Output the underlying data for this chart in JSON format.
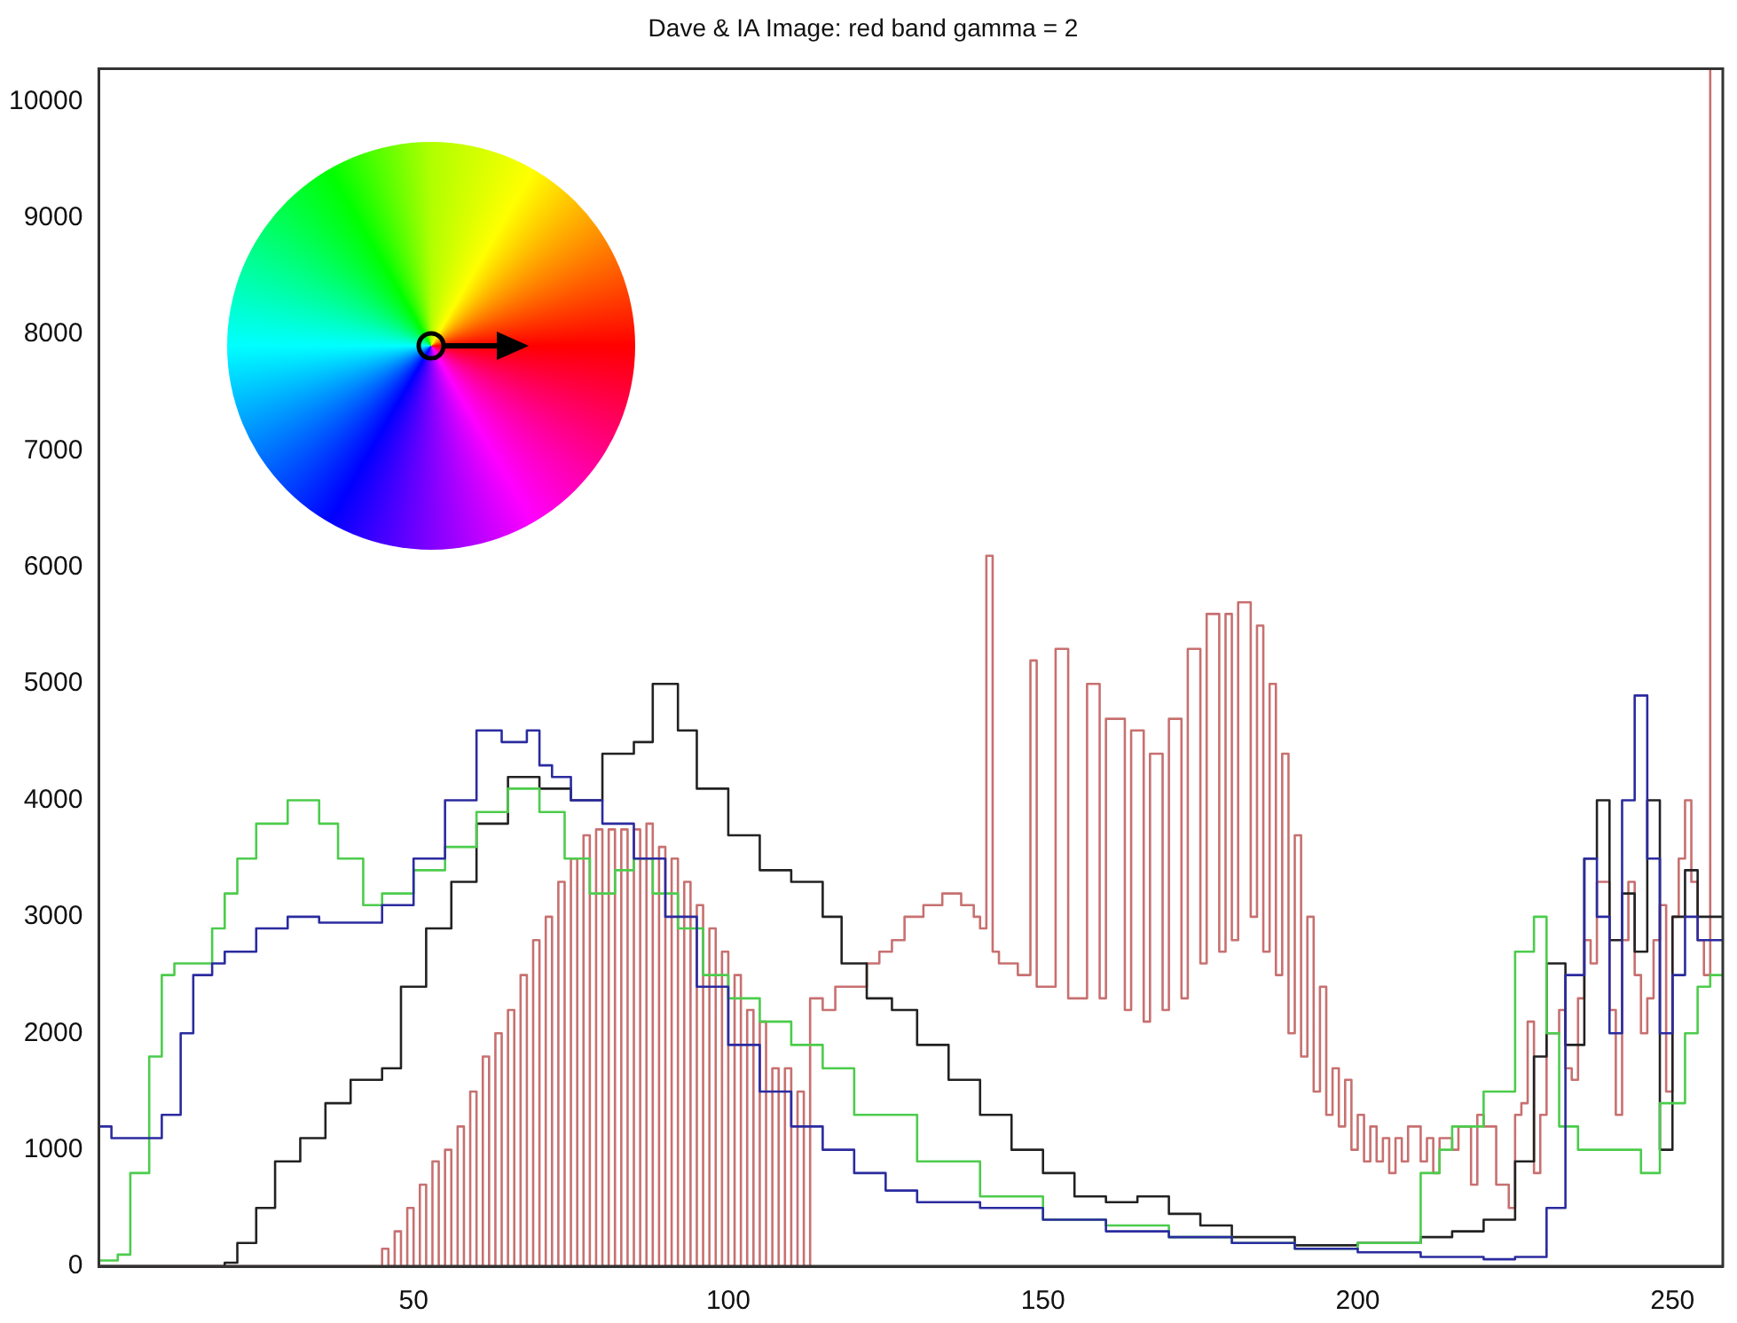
{
  "chart_data": {
    "type": "step",
    "title": "Dave & IA Image: red band gamma = 2",
    "xlim": [
      0,
      258
    ],
    "xticks": [
      50,
      100,
      150,
      200,
      250
    ],
    "ylim": [
      0,
      10280
    ],
    "yticks": [
      0,
      1000,
      2000,
      3000,
      4000,
      5000,
      6000,
      7000,
      8000,
      9000,
      10000
    ],
    "grid": false,
    "legend": false,
    "marker": "none",
    "line_style": "solid",
    "series": [
      {
        "color": "#2b2ba0",
        "x": [
          0,
          2,
          5,
          10,
          13,
          15,
          18,
          20,
          25,
          30,
          35,
          40,
          45,
          50,
          55,
          60,
          64,
          68,
          70,
          72,
          75,
          80,
          85,
          90,
          95,
          100,
          105,
          110,
          115,
          120,
          125,
          130,
          140,
          150,
          160,
          170,
          180,
          190,
          200,
          210,
          220,
          225,
          230,
          233,
          236,
          238,
          240,
          242,
          244,
          246,
          248,
          250,
          252,
          254,
          256,
          258
        ],
        "values": [
          2700,
          1200,
          1100,
          1100,
          1300,
          2000,
          2500,
          2600,
          2700,
          2900,
          3000,
          2950,
          2950,
          3100,
          3500,
          4000,
          4600,
          4500,
          4600,
          4300,
          4200,
          4000,
          3800,
          3500,
          3000,
          2400,
          1900,
          1500,
          1200,
          1000,
          800,
          650,
          550,
          500,
          400,
          300,
          250,
          200,
          150,
          120,
          80,
          60,
          80,
          500,
          2500,
          3500,
          3000,
          2000,
          4000,
          4900,
          3500,
          2000,
          2500,
          3000,
          2800,
          2800
        ]
      },
      {
        "color": "#4ccc4c",
        "x": [
          0,
          3,
          5,
          8,
          10,
          12,
          15,
          18,
          20,
          22,
          25,
          30,
          35,
          38,
          42,
          45,
          50,
          55,
          60,
          65,
          70,
          74,
          78,
          82,
          85,
          88,
          92,
          96,
          100,
          105,
          110,
          115,
          120,
          130,
          140,
          150,
          160,
          170,
          180,
          190,
          200,
          210,
          213,
          215,
          220,
          225,
          228,
          230,
          232,
          235,
          240,
          245,
          248,
          250,
          252,
          254,
          256,
          258
        ],
        "values": [
          100,
          50,
          100,
          800,
          1800,
          2500,
          2600,
          2600,
          2900,
          3200,
          3500,
          3800,
          4000,
          3800,
          3500,
          3100,
          3200,
          3400,
          3600,
          3900,
          4100,
          3900,
          3500,
          3200,
          3400,
          3500,
          3200,
          2900,
          2500,
          2300,
          2100,
          1900,
          1700,
          1300,
          900,
          600,
          400,
          350,
          250,
          200,
          150,
          200,
          800,
          1000,
          1200,
          1500,
          2700,
          3000,
          2000,
          1200,
          1000,
          1000,
          800,
          1400,
          1400,
          2000,
          2400,
          2500
        ]
      },
      {
        "color": "#222222",
        "x": [
          0,
          20,
          22,
          25,
          28,
          32,
          36,
          40,
          45,
          48,
          52,
          56,
          60,
          65,
          70,
          75,
          80,
          85,
          88,
          92,
          95,
          100,
          105,
          110,
          115,
          118,
          122,
          126,
          130,
          135,
          140,
          145,
          150,
          155,
          160,
          165,
          170,
          175,
          180,
          190,
          200,
          210,
          215,
          220,
          225,
          228,
          230,
          233,
          236,
          238,
          240,
          242,
          244,
          246,
          248,
          250,
          252,
          254,
          256,
          258
        ],
        "values": [
          0,
          0,
          30,
          200,
          500,
          900,
          1100,
          1400,
          1600,
          1700,
          2400,
          2900,
          3300,
          3800,
          4200,
          4100,
          4000,
          4400,
          4500,
          5000,
          4600,
          4100,
          3700,
          3400,
          3300,
          3000,
          2600,
          2300,
          2200,
          1900,
          1600,
          1300,
          1000,
          800,
          600,
          550,
          600,
          450,
          350,
          250,
          180,
          200,
          250,
          300,
          400,
          900,
          1800,
          2600,
          1900,
          3500,
          4000,
          2800,
          3200,
          2700,
          4000,
          1000,
          3000,
          3400,
          3000,
          3000
        ]
      },
      {
        "color": "#c87070",
        "x": [
          0,
          45,
          46,
          47,
          48,
          49,
          50,
          51,
          52,
          53,
          54,
          55,
          56,
          57,
          58,
          59,
          60,
          61,
          62,
          63,
          64,
          65,
          66,
          67,
          68,
          69,
          70,
          71,
          72,
          73,
          74,
          75,
          76,
          77,
          78,
          79,
          80,
          81,
          82,
          83,
          84,
          85,
          86,
          87,
          88,
          89,
          90,
          91,
          92,
          93,
          94,
          95,
          96,
          97,
          98,
          99,
          100,
          101,
          102,
          103,
          104,
          105,
          106,
          107,
          108,
          109,
          110,
          111,
          112,
          113,
          114,
          115,
          117,
          119,
          122,
          124,
          126,
          128,
          131,
          134,
          137,
          139,
          140,
          141,
          142,
          143,
          146,
          148,
          149,
          150,
          152,
          154,
          155,
          157,
          159,
          160,
          163,
          164,
          166,
          167,
          169,
          170,
          172,
          173,
          175,
          176,
          178,
          179,
          180,
          181,
          183,
          184,
          185,
          186,
          187,
          188,
          189,
          190,
          191,
          192,
          193,
          194,
          195,
          196,
          197,
          198,
          199,
          200,
          201,
          202,
          203,
          204,
          205,
          206,
          207,
          208,
          210,
          211,
          212,
          213,
          215,
          216,
          218,
          219,
          220,
          222,
          224,
          225,
          226,
          227,
          228,
          229,
          230,
          232,
          233,
          234,
          235,
          236,
          237,
          238,
          239,
          240,
          241,
          242,
          243,
          244,
          245,
          246,
          247,
          248,
          249,
          250,
          251,
          252,
          253,
          254,
          255,
          256,
          257
        ],
        "values": [
          0,
          0,
          150,
          0,
          300,
          0,
          500,
          0,
          700,
          0,
          900,
          0,
          1000,
          0,
          1200,
          0,
          1500,
          0,
          1800,
          0,
          2000,
          0,
          2200,
          0,
          2500,
          0,
          2800,
          0,
          3000,
          0,
          3300,
          0,
          3500,
          0,
          3700,
          0,
          3750,
          0,
          3750,
          0,
          3750,
          0,
          3750,
          0,
          3800,
          0,
          3600,
          0,
          3500,
          0,
          3300,
          0,
          3100,
          0,
          2900,
          0,
          2700,
          0,
          2500,
          0,
          2200,
          0,
          2100,
          0,
          1700,
          0,
          1700,
          0,
          1500,
          0,
          2300,
          2300,
          2200,
          2400,
          2400,
          2600,
          2700,
          2800,
          3000,
          3100,
          3200,
          3100,
          3000,
          2900,
          6100,
          2700,
          2600,
          2500,
          5200,
          2400,
          2400,
          5300,
          2300,
          2300,
          5000,
          2300,
          4700,
          2200,
          4600,
          2100,
          4400,
          2200,
          4700,
          2300,
          5300,
          2600,
          5600,
          2700,
          5600,
          2800,
          5700,
          3000,
          5500,
          2700,
          5000,
          2500,
          4400,
          2000,
          3700,
          1800,
          3000,
          1500,
          2400,
          1300,
          1700,
          1200,
          1600,
          1000,
          1300,
          900,
          1200,
          900,
          1100,
          800,
          1100,
          900,
          1200,
          900,
          1100,
          800,
          1100,
          1000,
          1200,
          700,
          1300,
          1200,
          700,
          500,
          1300,
          1400,
          2100,
          800,
          1300,
          2000,
          2200,
          1700,
          1600,
          2300,
          2800,
          2600,
          3300,
          3300,
          2200,
          1300,
          2800,
          3300,
          2500,
          2000,
          2300,
          2800,
          3100,
          1500,
          3000,
          3500,
          4000,
          3300,
          2800,
          2500,
          10280
        ]
      }
    ]
  }
}
